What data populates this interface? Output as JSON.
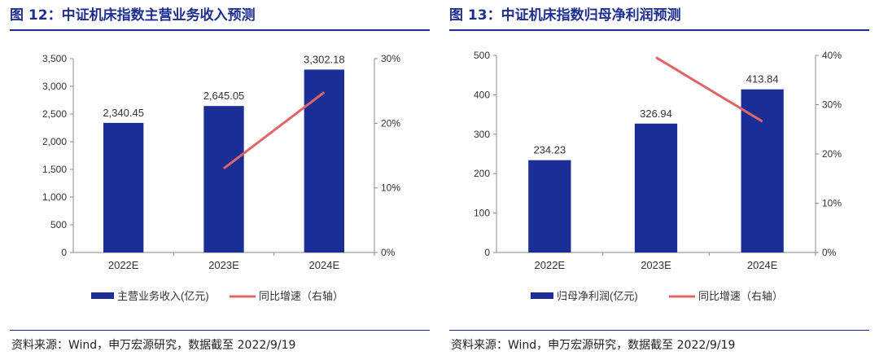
{
  "colors": {
    "bar": "#1a2e96",
    "line": "#e06666",
    "title": "#1f2f8f",
    "axis": "#888888"
  },
  "charts": [
    {
      "title": "图 12：中证机床指数主营业务收入预测",
      "source": "资料来源：Wind，申万宏源研究，数据截至 2022/9/19",
      "legend": {
        "bar_label": "主营业务收入(亿元)",
        "line_label": "同比增速（右轴）"
      },
      "left_ticks": [
        "0",
        "500",
        "1,000",
        "1,500",
        "2,000",
        "2,500",
        "3,000",
        "3,500"
      ],
      "right_ticks": [
        "0%",
        "10%",
        "20%",
        "30%"
      ],
      "bar_value_labels": [
        "2,340.45",
        "2,645.05",
        "3,302.18"
      ]
    },
    {
      "title": "图 13：中证机床指数归母净利润预测",
      "source": "资料来源：Wind，申万宏源研究，数据截至 2022/9/19",
      "legend": {
        "bar_label": "归母净利润(亿元)",
        "line_label": "同比增速（右轴）"
      },
      "left_ticks": [
        "0",
        "100",
        "200",
        "300",
        "400",
        "500"
      ],
      "right_ticks": [
        "0%",
        "10%",
        "20%",
        "30%",
        "40%"
      ],
      "bar_value_labels": [
        "234.23",
        "326.94",
        "413.84"
      ]
    }
  ],
  "chart_data": [
    {
      "type": "bar",
      "categories": [
        "2022E",
        "2023E",
        "2024E"
      ],
      "series": [
        {
          "name": "主营业务收入(亿元)",
          "type": "bar",
          "axis": "left",
          "values": [
            2340.45,
            2645.05,
            3302.18
          ]
        },
        {
          "name": "同比增速（右轴）",
          "type": "line",
          "axis": "right",
          "values": [
            null,
            13.0,
            24.8
          ]
        }
      ],
      "title": "图 12：中证机床指数主营业务收入预测",
      "ylim_left": [
        0,
        3500
      ],
      "ylim_right": [
        0,
        30
      ],
      "grid": false,
      "legend": "bottom"
    },
    {
      "type": "bar",
      "categories": [
        "2022E",
        "2023E",
        "2024E"
      ],
      "series": [
        {
          "name": "归母净利润(亿元)",
          "type": "bar",
          "axis": "left",
          "values": [
            234.23,
            326.94,
            413.84
          ]
        },
        {
          "name": "同比增速（右轴）",
          "type": "line",
          "axis": "right",
          "values": [
            null,
            39.6,
            26.6
          ]
        }
      ],
      "title": "图 13：中证机床指数归母净利润预测",
      "ylim_left": [
        0,
        500
      ],
      "ylim_right": [
        0,
        40
      ],
      "grid": false,
      "legend": "bottom"
    }
  ]
}
